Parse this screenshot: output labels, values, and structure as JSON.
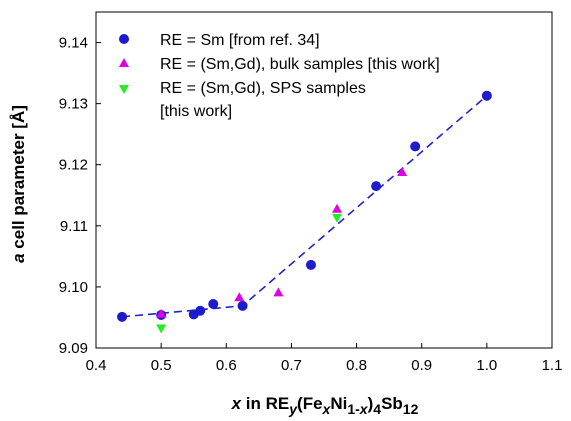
{
  "chart_data": {
    "type": "scatter",
    "xlabel": {
      "prefix": "x",
      "text1": " in RE",
      "sub1": "y",
      "text2": "(Fe",
      "sub2": "x",
      "text3": "Ni",
      "sub3a": "1-",
      "sub3b": "x",
      "text4": ")",
      "sub4": "4",
      "text5": "Sb",
      "sub5": "12"
    },
    "ylabel": {
      "prefix": "a",
      "rest": " cell parameter [Å]"
    },
    "xlim": [
      0.4,
      1.1
    ],
    "ylim": [
      9.09,
      9.145
    ],
    "xticks": [
      "0.4",
      "0.5",
      "0.6",
      "0.7",
      "0.8",
      "0.9",
      "1.0",
      "1.1"
    ],
    "yticks": [
      "9.09",
      "9.10",
      "9.11",
      "9.12",
      "9.13",
      "9.14"
    ],
    "legend_position": "top-left",
    "series": [
      {
        "name": "RE = Sm [from ref. 34]",
        "marker": "circle",
        "color": "#1c1ccc",
        "points": [
          [
            0.44,
            9.0951
          ],
          [
            0.5,
            9.0954
          ],
          [
            0.55,
            9.0955
          ],
          [
            0.56,
            9.0961
          ],
          [
            0.58,
            9.0972
          ],
          [
            0.625,
            9.0969
          ],
          [
            0.73,
            9.1036
          ],
          [
            0.83,
            9.1165
          ],
          [
            0.89,
            9.123
          ],
          [
            1.0,
            9.1313
          ]
        ]
      },
      {
        "name": "RE = (Sm,Gd), bulk samples [this work]",
        "marker": "triangle-up",
        "color": "#e000e0",
        "points": [
          [
            0.5,
            9.0956
          ],
          [
            0.62,
            9.0983
          ],
          [
            0.68,
            9.0991
          ],
          [
            0.77,
            9.1128
          ],
          [
            0.87,
            9.1188
          ]
        ]
      },
      {
        "name_line1": "RE = (Sm,Gd), SPS samples",
        "name_line2": "[this work]",
        "marker": "triangle-down",
        "color": "#22ee22",
        "points": [
          [
            0.5,
            9.0932
          ],
          [
            0.77,
            9.1113
          ]
        ]
      }
    ],
    "fit_line": {
      "style": "dashed",
      "color": "#2222cc",
      "points": [
        [
          0.44,
          9.0951
        ],
        [
          0.625,
          9.0969
        ],
        [
          1.0,
          9.1313
        ]
      ]
    }
  }
}
